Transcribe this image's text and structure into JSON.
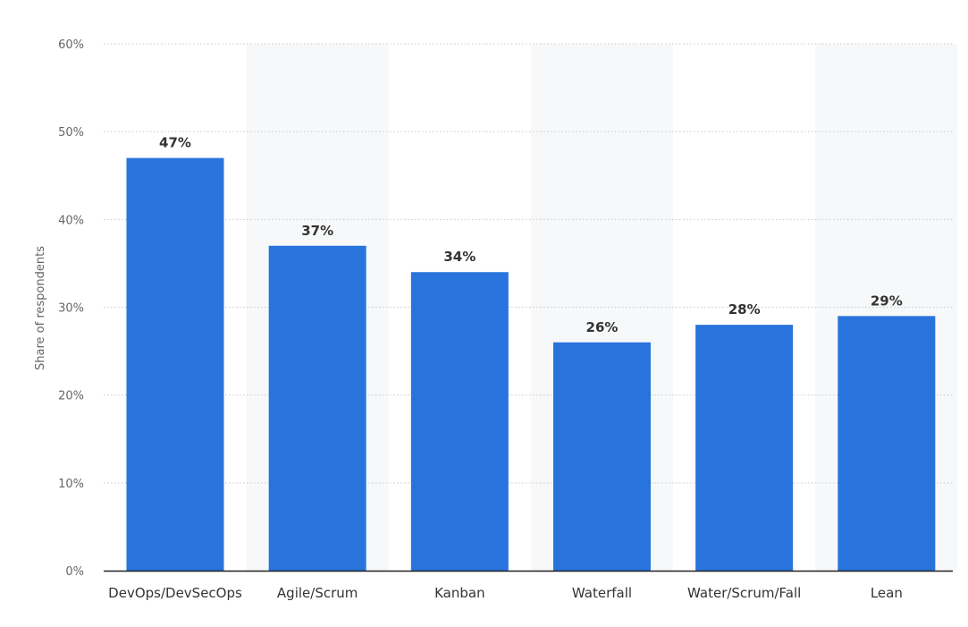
{
  "chart_data": {
    "type": "bar",
    "categories": [
      "DevOps/DevSecOps",
      "Agile/Scrum",
      "Kanban",
      "Waterfall",
      "Water/Scrum/Fall",
      "Lean"
    ],
    "values": [
      47,
      37,
      34,
      26,
      28,
      29
    ],
    "value_labels": [
      "47%",
      "37%",
      "34%",
      "26%",
      "28%",
      "29%"
    ],
    "title": "",
    "xlabel": "",
    "ylabel": "Share of respondents",
    "ylim": [
      0,
      60
    ],
    "yticks": [
      0,
      10,
      20,
      30,
      40,
      50,
      60
    ],
    "ytick_labels": [
      "0%",
      "10%",
      "20%",
      "30%",
      "40%",
      "50%",
      "60%"
    ],
    "grid": true,
    "legend": "none",
    "colors": {
      "bar": "#2874dc",
      "band": "#f7f8f9",
      "grid": "#c8c8c8",
      "axis": "#222222"
    }
  }
}
